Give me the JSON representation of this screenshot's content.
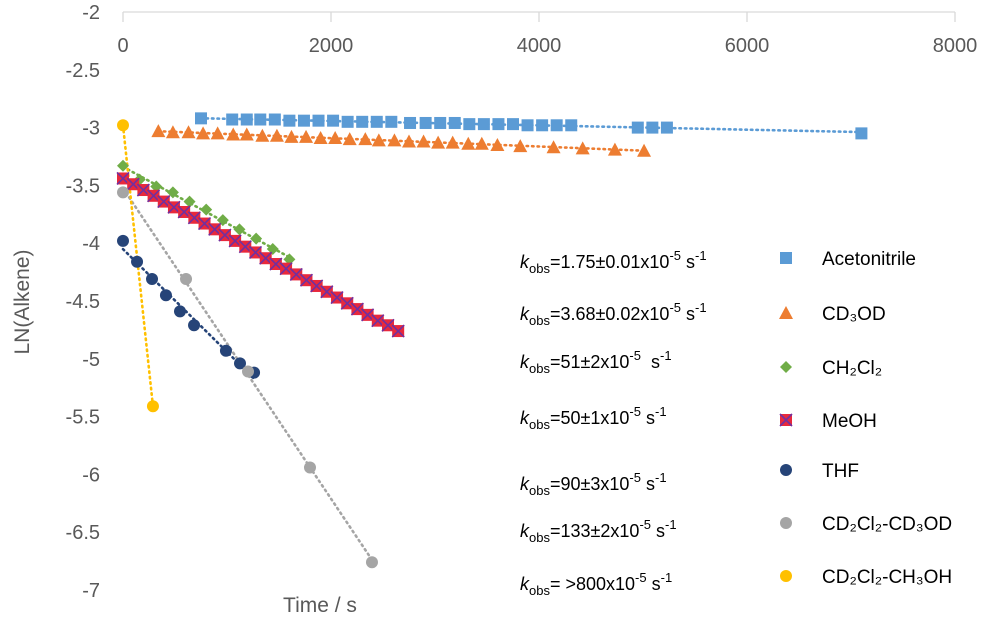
{
  "chart_data": {
    "type": "scatter",
    "x_label": "Time / s",
    "y_label": "LN(Alkene)",
    "xlim": [
      0,
      8000
    ],
    "xticks": [
      0,
      2000,
      4000,
      6000,
      8000
    ],
    "ylim": [
      -7,
      -2
    ],
    "yticks": [
      -2,
      -2.5,
      -3,
      -3.5,
      -4,
      -4.5,
      -5,
      -5.5,
      -6,
      -6.5,
      -7
    ],
    "trendline": "linear",
    "series": [
      {
        "name": "Acetonitrile",
        "color": "#5b9bd5",
        "marker": "square",
        "x": [
          750,
          1050,
          1190,
          1320,
          1460,
          1600,
          1740,
          1880,
          2020,
          2160,
          2300,
          2440,
          2580,
          2760,
          2910,
          3050,
          3190,
          3330,
          3470,
          3610,
          3750,
          3890,
          4030,
          4170,
          4310,
          4950,
          5090,
          5230,
          7100
        ],
        "values": [
          -2.92,
          -2.93,
          -2.93,
          -2.93,
          -2.93,
          -2.94,
          -2.94,
          -2.94,
          -2.94,
          -2.95,
          -2.95,
          -2.95,
          -2.95,
          -2.96,
          -2.96,
          -2.96,
          -2.96,
          -2.97,
          -2.97,
          -2.97,
          -2.97,
          -2.98,
          -2.98,
          -2.98,
          -2.98,
          -3.0,
          -3.0,
          -3.0,
          -3.05
        ]
      },
      {
        "name": "CD₃OD",
        "color": "#ed7d31",
        "marker": "triangle",
        "x": [
          340,
          480,
          630,
          770,
          910,
          1060,
          1190,
          1340,
          1480,
          1620,
          1760,
          1900,
          2040,
          2180,
          2330,
          2460,
          2610,
          2750,
          2890,
          3030,
          3170,
          3320,
          3450,
          3600,
          3820,
          4140,
          4420,
          4730,
          5010
        ],
        "values": [
          -3.03,
          -3.04,
          -3.04,
          -3.05,
          -3.05,
          -3.06,
          -3.06,
          -3.07,
          -3.07,
          -3.08,
          -3.08,
          -3.09,
          -3.09,
          -3.1,
          -3.1,
          -3.11,
          -3.11,
          -3.12,
          -3.12,
          -3.13,
          -3.13,
          -3.14,
          -3.14,
          -3.15,
          -3.16,
          -3.17,
          -3.18,
          -3.19,
          -3.2
        ]
      },
      {
        "name": "CH₂Cl₂",
        "color": "#70ad47",
        "marker": "diamond",
        "x": [
          0,
          160,
          320,
          480,
          640,
          800,
          960,
          1120,
          1280,
          1440,
          1600
        ],
        "values": [
          -3.33,
          -3.45,
          -3.51,
          -3.56,
          -3.64,
          -3.71,
          -3.8,
          -3.88,
          -3.96,
          -4.05,
          -4.14
        ]
      },
      {
        "name": "MeOH",
        "color": "#e8283c",
        "marker": "square-x",
        "x": [
          0,
          98,
          196,
          294,
          392,
          490,
          588,
          686,
          784,
          882,
          980,
          1078,
          1176,
          1274,
          1372,
          1470,
          1568,
          1666,
          1764,
          1862,
          1960,
          2058,
          2156,
          2254,
          2352,
          2450,
          2548,
          2646
        ],
        "values": [
          -3.44,
          -3.49,
          -3.54,
          -3.59,
          -3.64,
          -3.69,
          -3.73,
          -3.78,
          -3.83,
          -3.88,
          -3.93,
          -3.98,
          -4.03,
          -4.08,
          -4.13,
          -4.18,
          -4.22,
          -4.27,
          -4.32,
          -4.37,
          -4.42,
          -4.47,
          -4.52,
          -4.57,
          -4.62,
          -4.67,
          -4.71,
          -4.76
        ]
      },
      {
        "name": "THF",
        "color": "#264478",
        "marker": "circle",
        "x": [
          0,
          135,
          279,
          413,
          548,
          683,
          990,
          1125,
          1260
        ],
        "values": [
          -3.98,
          -4.16,
          -4.31,
          -4.45,
          -4.59,
          -4.71,
          -4.93,
          -5.04,
          -5.12
        ]
      },
      {
        "name": "CD₂Cl₂-CD₃OD",
        "color": "#a5a5a5",
        "marker": "circle",
        "x": [
          0,
          606,
          1202,
          1798,
          2394
        ],
        "values": [
          -3.56,
          -4.31,
          -5.11,
          -5.94,
          -6.76
        ]
      },
      {
        "name": "CD₂Cl₂-CH₃OH",
        "color": "#ffc000",
        "marker": "circle",
        "x": [
          0,
          288
        ],
        "values": [
          -2.98,
          -5.41
        ]
      }
    ],
    "annotations": [
      [
        {
          "text": "k",
          "style": "italic"
        },
        {
          "text": "obs",
          "style": "sub"
        },
        {
          "text": "=1.75±0.01x10"
        },
        {
          "text": "-5",
          "style": "sup"
        },
        {
          "text": " s"
        },
        {
          "text": "-1",
          "style": "sup"
        }
      ],
      [
        {
          "text": "k",
          "style": "italic"
        },
        {
          "text": "obs",
          "style": "sub"
        },
        {
          "text": "=3.68±0.02x10"
        },
        {
          "text": "-5",
          "style": "sup"
        },
        {
          "text": " s"
        },
        {
          "text": "-1",
          "style": "sup"
        }
      ],
      [
        {
          "text": "k",
          "style": "italic"
        },
        {
          "text": "obs",
          "style": "sub"
        },
        {
          "text": "=51±2x10"
        },
        {
          "text": "-5",
          "style": "sup"
        },
        {
          "text": "  s"
        },
        {
          "text": "-1",
          "style": "sup"
        }
      ],
      [
        {
          "text": "k",
          "style": "italic"
        },
        {
          "text": "obs",
          "style": "sub"
        },
        {
          "text": "=50±1x10"
        },
        {
          "text": "-5",
          "style": "sup"
        },
        {
          "text": " s"
        },
        {
          "text": "-1",
          "style": "sup"
        }
      ],
      [
        {
          "text": "k",
          "style": "italic"
        },
        {
          "text": "obs",
          "style": "sub"
        },
        {
          "text": "=90±3x10"
        },
        {
          "text": "-5",
          "style": "sup"
        },
        {
          "text": " s"
        },
        {
          "text": "-1",
          "style": "sup"
        }
      ],
      [
        {
          "text": "k",
          "style": "italic"
        },
        {
          "text": "obs",
          "style": "sub"
        },
        {
          "text": "=133±2x10"
        },
        {
          "text": "-5",
          "style": "sup"
        },
        {
          "text": " s"
        },
        {
          "text": "-1",
          "style": "sup"
        }
      ],
      [
        {
          "text": "k",
          "style": "italic"
        },
        {
          "text": "obs",
          "style": "sub"
        },
        {
          "text": "= >800x10"
        },
        {
          "text": "-5",
          "style": "sup"
        },
        {
          "text": " s"
        },
        {
          "text": "-1",
          "style": "sup"
        }
      ]
    ]
  }
}
